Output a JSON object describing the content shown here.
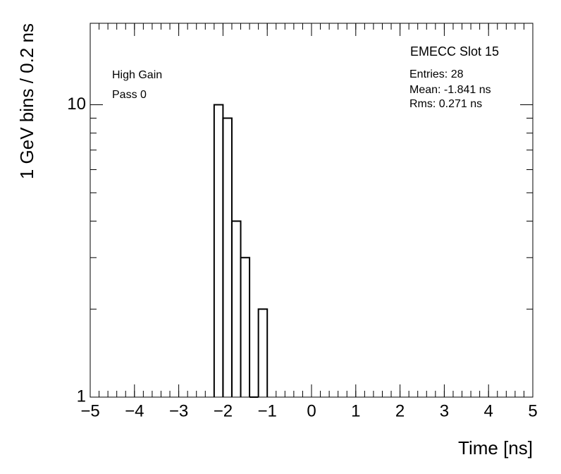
{
  "chart_data": {
    "type": "histogram",
    "title": "EMECC Slot 15",
    "stats": [
      "Entries: 28",
      "Mean: -1.841 ns",
      "Rms: 0.271 ns"
    ],
    "annotations": [
      "High Gain",
      "Pass 0"
    ],
    "x_label": "Time [ns]",
    "y_label": "1 GeV bins / 0.2 ns",
    "bins": [
      -2.2,
      -2.0,
      -1.8,
      -1.6,
      -1.4,
      -1.2,
      -1.0
    ],
    "values": [
      10,
      9,
      4,
      3,
      0,
      2
    ],
    "color": "#000000",
    "xlim": [
      -5,
      5
    ],
    "xticks": [
      {
        "value": -5,
        "label": "−5"
      },
      {
        "value": -4,
        "label": "−4"
      },
      {
        "value": -3,
        "label": "−3"
      },
      {
        "value": -2,
        "label": "−2"
      },
      {
        "value": -1,
        "label": "−1"
      },
      0,
      1,
      2,
      3,
      4,
      5
    ],
    "ylim": [
      1,
      19
    ],
    "yticks": [
      1,
      10
    ],
    "log_y": true
  }
}
